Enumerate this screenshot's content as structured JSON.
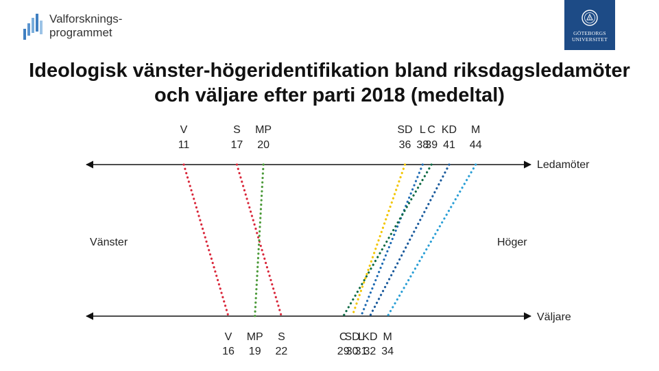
{
  "header": {
    "program_name": "Valforsknings-\nprogrammet",
    "university_name": "GÖTEBORGS\nUNIVERSITET"
  },
  "chart_data": {
    "type": "slope",
    "title": "Ideologisk vänster-högeridentifikation bland riksdagsledamöter och väljare efter parti 2018 (medeltal)",
    "top_axis_label": "Ledamöter",
    "bottom_axis_label": "Väljare",
    "left_label": "Vänster",
    "right_label": "Höger",
    "series": [
      {
        "name": "V",
        "ledamoter": 11,
        "valjare": 16,
        "color": "#d9273a"
      },
      {
        "name": "S",
        "ledamoter": 17,
        "valjare": 22,
        "color": "#d9273a"
      },
      {
        "name": "MP",
        "ledamoter": 20,
        "valjare": 19,
        "color": "#4c9a3a"
      },
      {
        "name": "SD",
        "ledamoter": 36,
        "valjare": 30,
        "color": "#f2c500"
      },
      {
        "name": "L",
        "ledamoter": 38,
        "valjare": 31,
        "color": "#1f6bb3"
      },
      {
        "name": "C",
        "ledamoter": 39,
        "valjare": 29,
        "color": "#0f6b45"
      },
      {
        "name": "KD",
        "ledamoter": 41,
        "valjare": 32,
        "color": "#1a5a9c"
      },
      {
        "name": "M",
        "ledamoter": 44,
        "valjare": 34,
        "color": "#2a9fd6"
      }
    ],
    "top_labels": [
      {
        "party": "V",
        "value": "11"
      },
      {
        "party": "S",
        "value": "17"
      },
      {
        "party": "MP",
        "value": "20"
      },
      {
        "party": "SD",
        "value": "36"
      },
      {
        "party": "L",
        "value": "38"
      },
      {
        "party": "C",
        "value": "39"
      },
      {
        "party": "KD",
        "value": "41"
      },
      {
        "party": "M",
        "value": "44"
      }
    ],
    "bottom_labels": [
      {
        "party": "V",
        "value": "16"
      },
      {
        "party": "MP",
        "value": "19"
      },
      {
        "party": "S",
        "value": "22"
      },
      {
        "party": "C",
        "value": "29"
      },
      {
        "party": "SD",
        "value": "30"
      },
      {
        "party": "L",
        "value": "31"
      },
      {
        "party": "KD",
        "value": "32"
      },
      {
        "party": "M",
        "value": "34"
      }
    ]
  }
}
